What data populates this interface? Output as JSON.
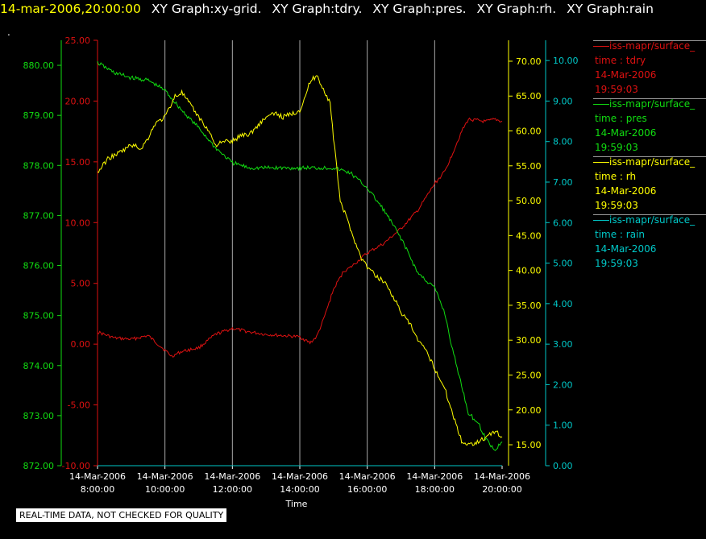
{
  "header": {
    "timestamp": "14-mar-2006,20:00:00",
    "graphs": [
      "XY Graph:xy-grid.",
      "XY Graph:tdry.",
      "XY Graph:pres.",
      "XY Graph:rh.",
      "XY Graph:rain"
    ]
  },
  "header_dot": ".",
  "footer_note": "REAL-TIME DATA, NOT CHECKED FOR QUALITY",
  "colors": {
    "tdry": "#dd1111",
    "pres": "#11dd11",
    "rh": "#ffff00",
    "rain": "#00c8c8",
    "grid": "#a8a8a8",
    "background": "#000000"
  },
  "legend": [
    {
      "name": "iss-mapr/surface_",
      "line2": "time : tdry",
      "line3": "14-Mar-2006",
      "line4": "19:59:03",
      "color": "#dd1111"
    },
    {
      "name": "iss-mapr/surface_",
      "line2": "time : pres",
      "line3": "14-Mar-2006",
      "line4": "19:59:03",
      "color": "#11dd11"
    },
    {
      "name": "iss-mapr/surface_",
      "line2": "time : rh",
      "line3": "14-Mar-2006",
      "line4": "19:59:03",
      "color": "#ffff00"
    },
    {
      "name": "iss-mapr/surface_",
      "line2": "time : rain",
      "line3": "14-Mar-2006",
      "line4": "19:59:03",
      "color": "#00c8c8"
    }
  ],
  "chart_data": {
    "type": "line",
    "xlabel": "Time",
    "x_ticks": [
      {
        "date": "14-Mar-2006",
        "time": "8:00:00"
      },
      {
        "date": "14-Mar-2006",
        "time": "10:00:00"
      },
      {
        "date": "14-Mar-2006",
        "time": "12:00:00"
      },
      {
        "date": "14-Mar-2006",
        "time": "14:00:00"
      },
      {
        "date": "14-Mar-2006",
        "time": "16:00:00"
      },
      {
        "date": "14-Mar-2006",
        "time": "18:00:00"
      },
      {
        "date": "14-Mar-2006",
        "time": "20:00:00"
      }
    ],
    "x_hours_range": [
      8,
      20
    ],
    "grid": "vertical",
    "axes": {
      "pres": {
        "range": [
          872,
          880.5
        ],
        "ticks": [
          "872.00",
          "873.00",
          "874.00",
          "875.00",
          "876.00",
          "877.00",
          "878.00",
          "879.00",
          "880.00"
        ],
        "color": "#11dd11",
        "side": "left-outer"
      },
      "tdry": {
        "range": [
          -10,
          25
        ],
        "ticks": [
          "-10.00",
          "-5.00",
          "0.00",
          "5.00",
          "10.00",
          "15.00",
          "20.00",
          "25.00"
        ],
        "color": "#dd1111",
        "side": "left-inner"
      },
      "rh": {
        "range": [
          12,
          73
        ],
        "ticks": [
          "15.00",
          "20.00",
          "25.00",
          "30.00",
          "35.00",
          "40.00",
          "45.00",
          "50.00",
          "55.00",
          "60.00",
          "65.00",
          "70.00"
        ],
        "color": "#ffff00",
        "side": "right-inner"
      },
      "rain": {
        "range": [
          0,
          10.5
        ],
        "ticks": [
          "0.00",
          "1.00",
          "2.00",
          "3.00",
          "4.00",
          "5.00",
          "6.00",
          "7.00",
          "8.00",
          "9.00",
          "10.00"
        ],
        "color": "#00c8c8",
        "side": "right-outer"
      }
    },
    "series": [
      {
        "key": "tdry",
        "name": "tdry",
        "axis": "tdry",
        "x": [
          8.0,
          8.5,
          9.0,
          9.5,
          10.0,
          10.2,
          10.5,
          11.0,
          11.5,
          12.0,
          12.5,
          13.0,
          13.5,
          14.0,
          14.3,
          14.5,
          14.7,
          15.0,
          15.3,
          15.5,
          16.0,
          16.5,
          17.0,
          17.5,
          18.0,
          18.3,
          18.5,
          18.8,
          19.0,
          19.3,
          19.5,
          19.8,
          20.0
        ],
        "y": [
          1.0,
          0.5,
          0.4,
          0.7,
          -0.5,
          -1.0,
          -0.6,
          -0.3,
          0.8,
          1.3,
          1.0,
          0.8,
          0.7,
          0.6,
          0.1,
          0.6,
          2.0,
          4.5,
          6.0,
          6.3,
          7.5,
          8.3,
          9.5,
          11.0,
          13.2,
          14.2,
          15.5,
          17.5,
          18.5,
          18.4,
          18.3,
          18.5,
          18.3
        ]
      },
      {
        "key": "pres",
        "name": "pres",
        "axis": "pres",
        "x": [
          8.0,
          8.5,
          9.0,
          9.5,
          10.0,
          10.5,
          11.0,
          11.5,
          12.0,
          12.5,
          13.0,
          13.5,
          14.0,
          14.5,
          15.0,
          15.5,
          16.0,
          16.5,
          17.0,
          17.5,
          18.0,
          18.3,
          18.5,
          18.8,
          19.0,
          19.3,
          19.5,
          19.8,
          20.0
        ],
        "y": [
          880.05,
          879.85,
          879.75,
          879.7,
          879.5,
          879.1,
          878.75,
          878.35,
          878.05,
          877.95,
          877.95,
          877.95,
          877.95,
          877.95,
          877.95,
          877.85,
          877.55,
          877.1,
          876.55,
          875.85,
          875.55,
          875.05,
          874.4,
          873.6,
          873.05,
          872.85,
          872.55,
          872.3,
          872.5
        ]
      },
      {
        "key": "rh",
        "name": "rh",
        "axis": "rh",
        "x": [
          8.0,
          8.3,
          8.7,
          9.0,
          9.3,
          9.5,
          9.7,
          10.0,
          10.3,
          10.5,
          11.0,
          11.3,
          11.5,
          11.8,
          12.0,
          12.3,
          12.5,
          12.8,
          13.0,
          13.3,
          13.5,
          13.8,
          14.0,
          14.2,
          14.3,
          14.5,
          14.7,
          14.9,
          15.0,
          15.2,
          15.5,
          15.8,
          16.0,
          16.3,
          16.5,
          16.8,
          17.0,
          17.3,
          17.5,
          17.8,
          18.0,
          18.3,
          18.5,
          18.8,
          19.0,
          19.3,
          19.5,
          19.8,
          20.0
        ],
        "y": [
          54.0,
          56.0,
          57.0,
          58.0,
          57.5,
          59.0,
          61.0,
          62.0,
          65.0,
          65.5,
          62.0,
          60.0,
          58.0,
          58.5,
          58.5,
          59.5,
          59.5,
          61.0,
          62.0,
          62.5,
          62.0,
          62.5,
          63.0,
          65.5,
          67.0,
          68.0,
          66.0,
          64.0,
          59.0,
          50.0,
          46.0,
          42.0,
          40.5,
          39.0,
          38.5,
          36.0,
          34.0,
          32.0,
          30.0,
          28.0,
          26.0,
          23.0,
          20.0,
          15.5,
          15.0,
          15.5,
          16.0,
          17.0,
          16.0
        ]
      },
      {
        "key": "rain",
        "name": "rain",
        "axis": "rain",
        "x": [
          8.0,
          20.0
        ],
        "y": [
          0.0,
          0.0
        ]
      }
    ]
  }
}
